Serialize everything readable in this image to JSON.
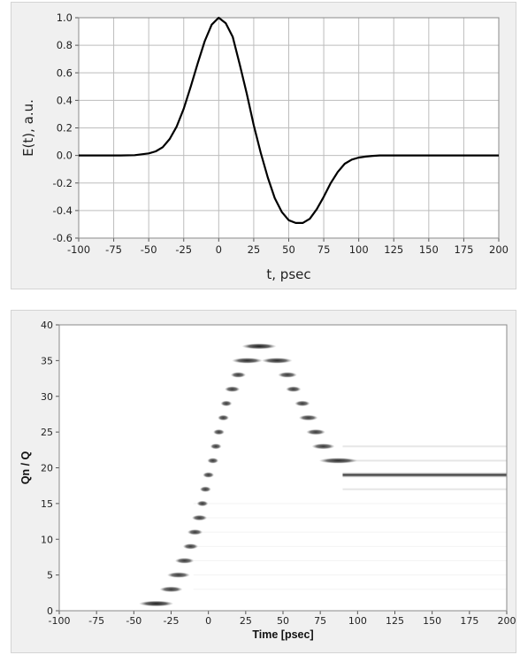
{
  "chart_data": [
    {
      "type": "line",
      "title": "",
      "xlabel": "t, psec",
      "ylabel": "E(t), a.u.",
      "xlim": [
        -100,
        200
      ],
      "ylim": [
        -0.6,
        1.0
      ],
      "x_ticks": [
        "-100",
        "-75",
        "-50",
        "-25",
        "0",
        "25",
        "50",
        "75",
        "100",
        "125",
        "150",
        "175",
        "200"
      ],
      "y_ticks": [
        "1.0",
        "0.8",
        "0.6",
        "0.4",
        "0.2",
        "0.0",
        "-0.2",
        "-0.4",
        "-0.6"
      ],
      "grid": true,
      "series": [
        {
          "color": "#000000",
          "x": [
            -100,
            -70,
            -60,
            -50,
            -45,
            -40,
            -35,
            -30,
            -25,
            -20,
            -15,
            -10,
            -5,
            0,
            5,
            10,
            15,
            20,
            25,
            30,
            35,
            40,
            45,
            50,
            55,
            60,
            65,
            70,
            75,
            80,
            85,
            90,
            95,
            100,
            105,
            110,
            115,
            120,
            130,
            150,
            200
          ],
          "y": [
            0,
            0,
            0.002,
            0.015,
            0.03,
            0.06,
            0.12,
            0.21,
            0.34,
            0.5,
            0.67,
            0.83,
            0.95,
            1.0,
            0.96,
            0.86,
            0.66,
            0.45,
            0.22,
            0.02,
            -0.16,
            -0.31,
            -0.41,
            -0.47,
            -0.49,
            -0.49,
            -0.46,
            -0.39,
            -0.3,
            -0.2,
            -0.12,
            -0.06,
            -0.03,
            -0.015,
            -0.008,
            -0.003,
            0,
            0,
            0,
            0,
            0
          ]
        }
      ]
    },
    {
      "type": "heatmap",
      "title": "",
      "xlabel": "Time [psec]",
      "ylabel": "Qn / Q",
      "xlim": [
        -100,
        200
      ],
      "ylim": [
        0,
        40
      ],
      "x_ticks": [
        "-100",
        "-75",
        "-50",
        "-25",
        "0",
        "25",
        "50",
        "75",
        "100",
        "125",
        "150",
        "175",
        "200"
      ],
      "y_ticks": [
        "40",
        "35",
        "30",
        "25",
        "20",
        "15",
        "10",
        "5",
        "0"
      ],
      "colormap": "white-to-black",
      "intensity_note": "",
      "blobs": [
        {
          "t": -35,
          "q": 1,
          "w": 8,
          "i": 0.95
        },
        {
          "t": -25,
          "q": 3,
          "w": 5,
          "i": 0.85
        },
        {
          "t": -20,
          "q": 5,
          "w": 5,
          "i": 0.85
        },
        {
          "t": -16,
          "q": 7,
          "w": 4,
          "i": 0.85
        },
        {
          "t": -12,
          "q": 9,
          "w": 3,
          "i": 0.85
        },
        {
          "t": -9,
          "q": 11,
          "w": 3,
          "i": 0.85
        },
        {
          "t": -6,
          "q": 13,
          "w": 3,
          "i": 0.85
        },
        {
          "t": -4,
          "q": 15,
          "w": 2,
          "i": 0.85
        },
        {
          "t": -2,
          "q": 17,
          "w": 2,
          "i": 0.85
        },
        {
          "t": 0,
          "q": 19,
          "w": 2,
          "i": 0.85
        },
        {
          "t": 3,
          "q": 21,
          "w": 2,
          "i": 0.85
        },
        {
          "t": 5,
          "q": 23,
          "w": 2,
          "i": 0.85
        },
        {
          "t": 7,
          "q": 25,
          "w": 2,
          "i": 0.85
        },
        {
          "t": 10,
          "q": 27,
          "w": 2,
          "i": 0.85
        },
        {
          "t": 12,
          "q": 29,
          "w": 2,
          "i": 0.85
        },
        {
          "t": 16,
          "q": 31,
          "w": 3,
          "i": 0.85
        },
        {
          "t": 20,
          "q": 33,
          "w": 3,
          "i": 0.85
        },
        {
          "t": 26,
          "q": 35,
          "w": 7,
          "i": 0.9
        },
        {
          "t": 34,
          "q": 37,
          "w": 8,
          "i": 0.95
        },
        {
          "t": 46,
          "q": 35,
          "w": 7,
          "i": 0.9
        },
        {
          "t": 53,
          "q": 33,
          "w": 4,
          "i": 0.85
        },
        {
          "t": 57,
          "q": 31,
          "w": 3,
          "i": 0.85
        },
        {
          "t": 63,
          "q": 29,
          "w": 3,
          "i": 0.85
        },
        {
          "t": 67,
          "q": 27,
          "w": 4,
          "i": 0.85
        },
        {
          "t": 72,
          "q": 25,
          "w": 4,
          "i": 0.85
        },
        {
          "t": 77,
          "q": 23,
          "w": 5,
          "i": 0.85
        },
        {
          "t": 87,
          "q": 21,
          "w": 9,
          "i": 0.9
        }
      ],
      "bands": [
        {
          "q": 19,
          "t_start": 90,
          "t_end": 200,
          "i": 0.95
        }
      ]
    }
  ]
}
